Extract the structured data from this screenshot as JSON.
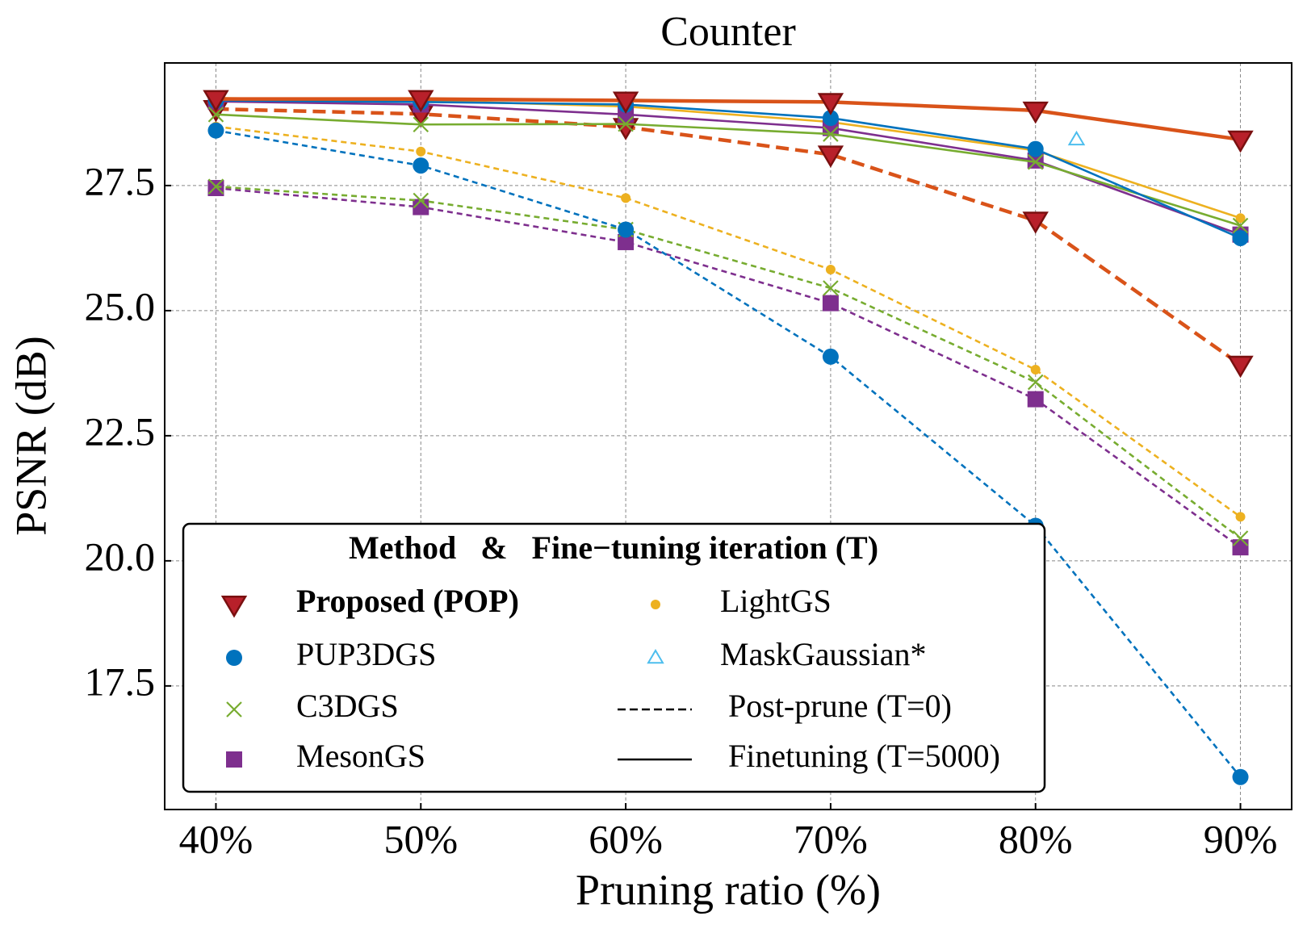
{
  "chart_data": {
    "type": "line",
    "title": "Counter",
    "x_label": "Pruning ratio (%)",
    "y_label": "PSNR (dB)",
    "x": [
      40,
      50,
      60,
      70,
      80,
      90
    ],
    "xlim": [
      37.5,
      92.5
    ],
    "xticks": [
      {
        "value": 40,
        "label": "40%"
      },
      {
        "value": 50,
        "label": "50%"
      },
      {
        "value": 60,
        "label": "60%"
      },
      {
        "value": 70,
        "label": "70%"
      },
      {
        "value": 80,
        "label": "80%"
      },
      {
        "value": 90,
        "label": "90%"
      }
    ],
    "ylim": [
      15.03,
      29.95
    ],
    "yticks": [
      17.5,
      20.0,
      22.5,
      25.0,
      27.5
    ],
    "grid": true,
    "legend_title": "Method   &   Fine−tuning iteration (T)",
    "legend_position": "lower left",
    "line_styles": [
      {
        "label": "Post-prune (T=0)",
        "style": "dashed"
      },
      {
        "label": "Finetuning (T=5000)",
        "style": "solid"
      }
    ],
    "series": [
      {
        "name": "Proposed (POP)",
        "color": "#d95319",
        "marker_color": "#b8202a",
        "marker": "triangle-down",
        "values": [
          29.23,
          29.23,
          29.2,
          29.17,
          29.0,
          28.42
        ],
        "post_prune_values": [
          29.03,
          28.93,
          28.67,
          28.12,
          26.8,
          23.92
        ]
      },
      {
        "name": "PUP3DGS",
        "color": "#0072bd",
        "marker": "circle",
        "values": [
          29.2,
          29.17,
          29.12,
          28.85,
          28.23,
          26.45
        ],
        "post_prune_values": [
          28.6,
          27.9,
          26.62,
          24.08,
          20.7,
          15.68
        ]
      },
      {
        "name": "C3DGS",
        "color": "#77ac30",
        "marker": "x",
        "values": [
          28.92,
          28.72,
          28.73,
          28.53,
          27.97,
          26.7
        ],
        "post_prune_values": [
          27.48,
          27.2,
          26.62,
          25.45,
          23.57,
          20.45
        ]
      },
      {
        "name": "MesonGS",
        "color": "#7e2f8e",
        "marker": "square",
        "values": [
          29.18,
          29.12,
          28.92,
          28.65,
          28.0,
          26.52
        ],
        "post_prune_values": [
          27.45,
          27.07,
          26.37,
          25.15,
          23.23,
          20.27
        ]
      },
      {
        "name": "LightGS",
        "color": "#edb120",
        "marker": "dot",
        "values": [
          29.25,
          29.2,
          29.08,
          28.77,
          28.2,
          26.85
        ],
        "post_prune_values": [
          28.68,
          28.18,
          27.25,
          25.82,
          23.82,
          20.88
        ]
      },
      {
        "name": "MaskGaussian*",
        "color": "#4dbeee",
        "marker": "triangle-up-open",
        "x": [
          82
        ],
        "values": [
          28.42
        ]
      }
    ]
  }
}
